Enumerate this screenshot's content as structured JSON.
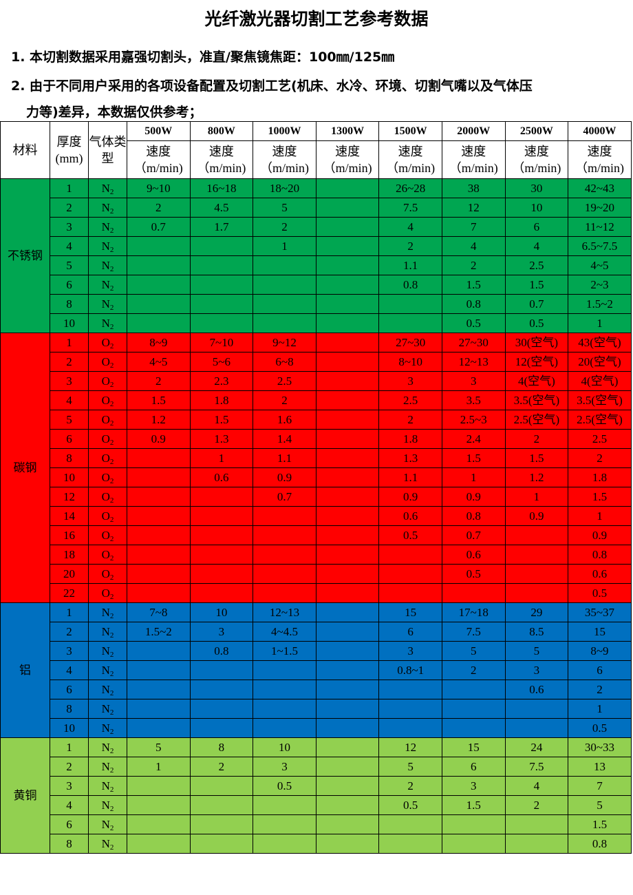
{
  "title": "光纤激光器切割工艺参考数据",
  "notes": [
    "1. 本切割数据采用嘉强切割头，准直/聚焦镜焦距：100㎜/125㎜",
    "2. 由于不同用户采用的各项设备配置及切割工艺(机床、水冷、环境、切割气嘴以及气体压",
    "力等)差异，本数据仅供参考；"
  ],
  "header": {
    "material": "材料",
    "thickness": "厚度(mm)",
    "gas": "气体类型",
    "speed": "速度",
    "unit": "（m/min)",
    "powers": [
      "500W",
      "800W",
      "1000W",
      "1300W",
      "1500W",
      "2000W",
      "2500W",
      "4000W"
    ]
  },
  "groups": [
    {
      "material": "不锈钢",
      "color": "#00a651",
      "rows": [
        [
          "1",
          "N2",
          "9~10",
          "16~18",
          "18~20",
          "",
          "26~28",
          "38",
          "30",
          "42~43"
        ],
        [
          "2",
          "N2",
          "2",
          "4.5",
          "5",
          "",
          "7.5",
          "12",
          "10",
          "19~20"
        ],
        [
          "3",
          "N2",
          "0.7",
          "1.7",
          "2",
          "",
          "4",
          "7",
          "6",
          "11~12"
        ],
        [
          "4",
          "N2",
          "",
          "",
          "1",
          "",
          "2",
          "4",
          "4",
          "6.5~7.5"
        ],
        [
          "5",
          "N2",
          "",
          "",
          "",
          "",
          "1.1",
          "2",
          "2.5",
          "4~5"
        ],
        [
          "6",
          "N2",
          "",
          "",
          "",
          "",
          "0.8",
          "1.5",
          "1.5",
          "2~3"
        ],
        [
          "8",
          "N2",
          "",
          "",
          "",
          "",
          "",
          "0.8",
          "0.7",
          "1.5~2"
        ],
        [
          "10",
          "N2",
          "",
          "",
          "",
          "",
          "",
          "0.5",
          "0.5",
          "1"
        ]
      ]
    },
    {
      "material": "碳钢",
      "color": "#ff0000",
      "rows": [
        [
          "1",
          "O2",
          "8~9",
          "7~10",
          "9~12",
          "",
          "27~30",
          "27~30",
          "30(空气)",
          "43(空气)"
        ],
        [
          "2",
          "O2",
          "4~5",
          "5~6",
          "6~8",
          "",
          "8~10",
          "12~13",
          "12(空气)",
          "20(空气)"
        ],
        [
          "3",
          "O2",
          "2",
          "2.3",
          "2.5",
          "",
          "3",
          "3",
          "4(空气)",
          "4(空气)"
        ],
        [
          "4",
          "O2",
          "1.5",
          "1.8",
          "2",
          "",
          "2.5",
          "3.5",
          "3.5(空气)",
          "3.5(空气)"
        ],
        [
          "5",
          "O2",
          "1.2",
          "1.5",
          "1.6",
          "",
          "2",
          "2.5~3",
          "2.5(空气)",
          "2.5(空气)"
        ],
        [
          "6",
          "O2",
          "0.9",
          "1.3",
          "1.4",
          "",
          "1.8",
          "2.4",
          "2",
          "2.5"
        ],
        [
          "8",
          "O2",
          "",
          "1",
          "1.1",
          "",
          "1.3",
          "1.5",
          "1.5",
          "2"
        ],
        [
          "10",
          "O2",
          "",
          "0.6",
          "0.9",
          "",
          "1.1",
          "1",
          "1.2",
          "1.8"
        ],
        [
          "12",
          "O2",
          "",
          "",
          "0.7",
          "",
          "0.9",
          "0.9",
          "1",
          "1.5"
        ],
        [
          "14",
          "O2",
          "",
          "",
          "",
          "",
          "0.6",
          "0.8",
          "0.9",
          "1"
        ],
        [
          "16",
          "O2",
          "",
          "",
          "",
          "",
          "0.5",
          "0.7",
          "",
          "0.9"
        ],
        [
          "18",
          "O2",
          "",
          "",
          "",
          "",
          "",
          "0.6",
          "",
          "0.8"
        ],
        [
          "20",
          "O2",
          "",
          "",
          "",
          "",
          "",
          "0.5",
          "",
          "0.6"
        ],
        [
          "22",
          "O2",
          "",
          "",
          "",
          "",
          "",
          "",
          "",
          "0.5"
        ]
      ]
    },
    {
      "material": "铝",
      "color": "#0070c0",
      "rows": [
        [
          "1",
          "N2",
          "7~8",
          "10",
          "12~13",
          "",
          "15",
          "17~18",
          "29",
          "35~37"
        ],
        [
          "2",
          "N2",
          "1.5~2",
          "3",
          "4~4.5",
          "",
          "6",
          "7.5",
          "8.5",
          "15"
        ],
        [
          "3",
          "N2",
          "",
          "0.8",
          "1~1.5",
          "",
          "3",
          "5",
          "5",
          "8~9"
        ],
        [
          "4",
          "N2",
          "",
          "",
          "",
          "",
          "0.8~1",
          "2",
          "3",
          "6"
        ],
        [
          "6",
          "N2",
          "",
          "",
          "",
          "",
          "",
          "",
          "0.6",
          "2"
        ],
        [
          "8",
          "N2",
          "",
          "",
          "",
          "",
          "",
          "",
          "",
          "1"
        ],
        [
          "10",
          "N2",
          "",
          "",
          "",
          "",
          "",
          "",
          "",
          "0.5"
        ]
      ]
    },
    {
      "material": "黄铜",
      "color": "#92d050",
      "rows": [
        [
          "1",
          "N2",
          "5",
          "8",
          "10",
          "",
          "12",
          "15",
          "24",
          "30~33"
        ],
        [
          "2",
          "N2",
          "1",
          "2",
          "3",
          "",
          "5",
          "6",
          "7.5",
          "13"
        ],
        [
          "3",
          "N2",
          "",
          "",
          "0.5",
          "",
          "2",
          "3",
          "4",
          "7"
        ],
        [
          "4",
          "N2",
          "",
          "",
          "",
          "",
          "0.5",
          "1.5",
          "2",
          "5"
        ],
        [
          "6",
          "N2",
          "",
          "",
          "",
          "",
          "",
          "",
          "",
          "1.5"
        ],
        [
          "8",
          "N2",
          "",
          "",
          "",
          "",
          "",
          "",
          "",
          "0.8"
        ]
      ]
    }
  ]
}
